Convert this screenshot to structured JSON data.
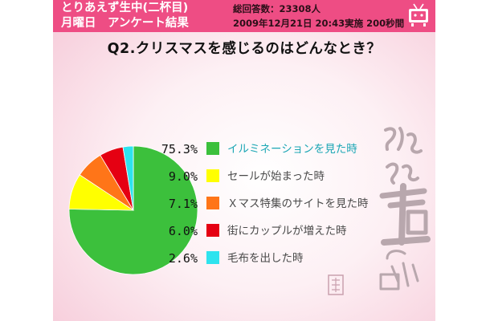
{
  "header": {
    "show_title_line1": "とりあえず生中(二杯目)",
    "show_title_line2": "月曜日　アンケート結果",
    "total_respondents": "総回答数：23308人",
    "date_info": "2009年12月21日 20:43実施 200秒間",
    "logo_icon": "tv-mascot-icon"
  },
  "question": "Q2.クリスマスを感じるのはどんなとき？",
  "colors": {
    "header_bg": "#ee4d84",
    "label_text": "#4a4a4a"
  },
  "watermark_icon": "toriaezu-namachu-stamp-icon",
  "chart_data": {
    "type": "pie",
    "title": "Q2.クリスマスを感じるのはどんなとき？",
    "slices": [
      {
        "label": "イルミネーションを見た時",
        "pct_label": "75.3%",
        "value": 75.3,
        "color": "#3cc03c",
        "label_color": "#1aa6b4"
      },
      {
        "label": "セールが始まった時",
        "pct_label": "9.0%",
        "value": 9.0,
        "color": "#ffff00",
        "label_color": "#4a4a4a"
      },
      {
        "label": "Ｘマス特集のサイトを見た時",
        "pct_label": "7.1%",
        "value": 7.1,
        "color": "#ff7518",
        "label_color": "#4a4a4a"
      },
      {
        "label": "街にカップルが増えた時",
        "pct_label": "6.0%",
        "value": 6.0,
        "color": "#e50012",
        "label_color": "#4a4a4a"
      },
      {
        "label": "毛布を出した時",
        "pct_label": "2.6%",
        "value": 2.6,
        "color": "#2ee3ee",
        "label_color": "#4a4a4a"
      }
    ],
    "legend_position": "right"
  }
}
